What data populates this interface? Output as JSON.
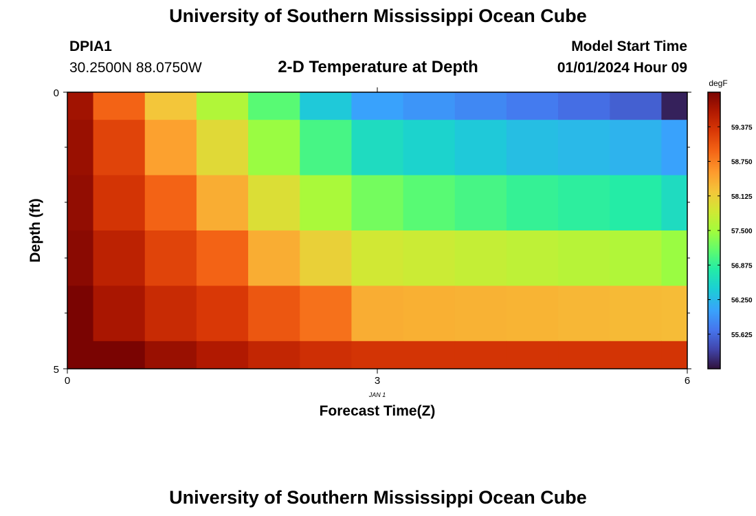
{
  "header": {
    "title": "University of Southern Mississippi Ocean Cube",
    "station": "DPIA1",
    "coords": "30.2500N  88.0750W",
    "subtitle": "2-D Temperature at Depth",
    "model_label": "Model Start Time",
    "model_time": "01/01/2024 Hour 09"
  },
  "footer": {
    "title": "University of Southern Mississippi Ocean Cube"
  },
  "chart_data": {
    "type": "heatmap",
    "title": "2-D Temperature at Depth",
    "xlabel": "Forecast Time(Z)",
    "ylabel": "Depth (ft)",
    "x_date_label": "JAN 1",
    "xlim": [
      0,
      6
    ],
    "ylim": [
      0,
      5
    ],
    "x_ticks": [
      "0",
      "3",
      "6"
    ],
    "y_ticks": [
      "0",
      "5"
    ],
    "x": [
      0,
      0.5,
      1,
      1.5,
      2,
      2.5,
      3,
      3.5,
      4,
      4.5,
      5,
      5.5,
      6
    ],
    "depths": [
      0,
      1,
      2,
      3,
      4,
      5
    ],
    "values": [
      [
        59.75,
        58.95,
        58.2,
        57.6,
        57.1,
        56.4,
        56.05,
        55.95,
        55.85,
        55.75,
        55.65,
        55.55,
        55.1
      ],
      [
        59.8,
        59.2,
        58.5,
        58.0,
        57.45,
        57.0,
        56.6,
        56.5,
        56.4,
        56.3,
        56.25,
        56.2,
        56.05
      ],
      [
        59.85,
        59.35,
        58.95,
        58.4,
        57.95,
        57.55,
        57.25,
        57.1,
        57.0,
        56.9,
        56.85,
        56.8,
        56.6
      ],
      [
        59.9,
        59.55,
        59.2,
        58.95,
        58.4,
        58.1,
        57.85,
        57.8,
        57.75,
        57.7,
        57.65,
        57.6,
        57.45
      ],
      [
        60.1,
        59.7,
        59.45,
        59.3,
        59.05,
        58.85,
        58.4,
        58.38,
        58.36,
        58.35,
        58.32,
        58.3,
        58.28
      ],
      [
        60.35,
        60.0,
        59.8,
        59.65,
        59.5,
        59.4,
        59.35,
        59.35,
        59.35,
        59.35,
        59.35,
        59.35,
        59.35
      ]
    ],
    "colorbar": {
      "label": "degF",
      "ticks": [
        "59.375",
        "58.750",
        "58.125",
        "57.500",
        "56.875",
        "56.250",
        "55.625"
      ],
      "min": 55.0,
      "max": 60.0
    }
  }
}
